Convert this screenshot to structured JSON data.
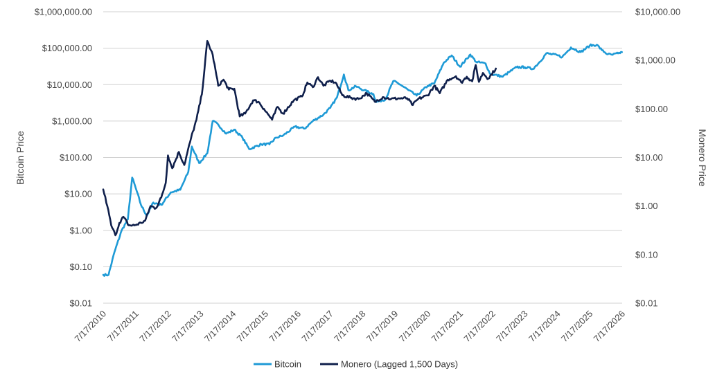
{
  "chart_data": {
    "type": "line",
    "title": "",
    "xlabel": "",
    "ylabel": "Bitcoin Price",
    "y2label": "Monero Price",
    "y_scale": "log",
    "y2_scale": "log",
    "ylim": [
      0.01,
      1000000
    ],
    "y2lim": [
      0.01,
      10000
    ],
    "x_ticks": [
      "7/17/2010",
      "7/17/2011",
      "7/17/2012",
      "7/17/2013",
      "7/17/2014",
      "7/17/2015",
      "7/17/2016",
      "7/17/2017",
      "7/17/2018",
      "7/17/2019",
      "7/17/2020",
      "7/17/2021",
      "7/17/2022",
      "7/17/2023",
      "7/17/2024",
      "7/17/2025",
      "7/17/2026"
    ],
    "y_ticks": [
      "$0.01",
      "$0.10",
      "$1.00",
      "$10.00",
      "$100.00",
      "$1,000.00",
      "$10,000.00",
      "$100,000.00",
      "$1,000,000.00"
    ],
    "y2_ticks": [
      "$0.01",
      "$0.10",
      "$1.00",
      "$10.00",
      "$100.00",
      "$1,000.00",
      "$10,000.00"
    ],
    "y_tick_values": [
      0.01,
      0.1,
      1,
      10,
      100,
      1000,
      10000,
      100000,
      1000000
    ],
    "y2_tick_values": [
      0.01,
      0.1,
      1,
      10,
      100,
      1000,
      10000
    ],
    "grid": true,
    "legend_position": "bottom-center",
    "series": [
      {
        "name": "Bitcoin",
        "axis": "left",
        "color": "#1e9ad6",
        "points": [
          [
            "2010-07-17",
            0.06
          ],
          [
            "2010-09-15",
            0.06
          ],
          [
            "2010-11-20",
            0.25
          ],
          [
            "2011-02-10",
            1.0
          ],
          [
            "2011-04-20",
            2.0
          ],
          [
            "2011-06-08",
            28
          ],
          [
            "2011-07-20",
            14
          ],
          [
            "2011-09-15",
            5.0
          ],
          [
            "2011-11-20",
            2.5
          ],
          [
            "2012-02-01",
            5.8
          ],
          [
            "2012-05-01",
            5.0
          ],
          [
            "2012-08-15",
            11
          ],
          [
            "2012-12-01",
            13
          ],
          [
            "2013-03-01",
            40
          ],
          [
            "2013-04-10",
            200
          ],
          [
            "2013-07-01",
            70
          ],
          [
            "2013-10-01",
            130
          ],
          [
            "2013-12-01",
            1000
          ],
          [
            "2014-02-01",
            800
          ],
          [
            "2014-05-01",
            450
          ],
          [
            "2014-08-01",
            580
          ],
          [
            "2014-11-01",
            350
          ],
          [
            "2015-01-15",
            170
          ],
          [
            "2015-06-01",
            230
          ],
          [
            "2015-09-01",
            230
          ],
          [
            "2015-11-15",
            350
          ],
          [
            "2016-02-01",
            400
          ],
          [
            "2016-06-15",
            700
          ],
          [
            "2016-10-01",
            620
          ],
          [
            "2017-01-01",
            1000
          ],
          [
            "2017-05-01",
            1500
          ],
          [
            "2017-07-17",
            2300
          ],
          [
            "2017-10-01",
            4500
          ],
          [
            "2017-12-17",
            19000
          ],
          [
            "2018-02-06",
            7000
          ],
          [
            "2018-05-01",
            9000
          ],
          [
            "2018-08-01",
            7000
          ],
          [
            "2018-11-15",
            5500
          ],
          [
            "2018-12-15",
            3300
          ],
          [
            "2019-04-01",
            4000
          ],
          [
            "2019-06-26",
            12500
          ],
          [
            "2019-09-15",
            10000
          ],
          [
            "2019-12-15",
            7000
          ],
          [
            "2020-03-15",
            5000
          ],
          [
            "2020-07-17",
            9200
          ],
          [
            "2020-10-01",
            10800
          ],
          [
            "2021-01-15",
            40000
          ],
          [
            "2021-04-14",
            63000
          ],
          [
            "2021-07-17",
            31000
          ],
          [
            "2021-11-10",
            67000
          ],
          [
            "2022-01-15",
            42000
          ],
          [
            "2022-05-01",
            38000
          ],
          [
            "2022-06-18",
            20000
          ],
          [
            "2022-11-10",
            16500
          ],
          [
            "2023-01-20",
            22000
          ],
          [
            "2023-04-15",
            30000
          ],
          [
            "2023-07-17",
            30000
          ],
          [
            "2023-10-15",
            27000
          ],
          [
            "2024-01-01",
            42000
          ],
          [
            "2024-03-14",
            72000
          ],
          [
            "2024-07-17",
            64000
          ],
          [
            "2024-09-10",
            57000
          ],
          [
            "2024-12-17",
            105000
          ],
          [
            "2025-04-07",
            78000
          ],
          [
            "2025-07-17",
            118000
          ],
          [
            "2025-10-05",
            124000
          ],
          [
            "2025-12-01",
            88000
          ],
          [
            "2026-02-05",
            68000
          ],
          [
            "2026-04-01",
            66000
          ],
          [
            "2026-06-01",
            72000
          ],
          [
            "2026-07-15",
            78000
          ]
        ]
      },
      {
        "name": "Monero (Lagged 1,500 Days)",
        "axis": "right",
        "color": "#0f1f4b",
        "points": [
          [
            "2010-07-17",
            2.2
          ],
          [
            "2010-09-01",
            1.0
          ],
          [
            "2010-10-15",
            0.4
          ],
          [
            "2010-12-01",
            0.25
          ],
          [
            "2011-01-15",
            0.45
          ],
          [
            "2011-03-01",
            0.6
          ],
          [
            "2011-05-01",
            0.4
          ],
          [
            "2011-07-01",
            0.4
          ],
          [
            "2011-09-15",
            0.45
          ],
          [
            "2011-11-01",
            0.5
          ],
          [
            "2012-01-01",
            1.0
          ],
          [
            "2012-03-01",
            0.9
          ],
          [
            "2012-05-01",
            1.5
          ],
          [
            "2012-06-20",
            3.0
          ],
          [
            "2012-07-15",
            11
          ],
          [
            "2012-09-01",
            6
          ],
          [
            "2012-11-15",
            13
          ],
          [
            "2013-01-15",
            7
          ],
          [
            "2013-04-01",
            25
          ],
          [
            "2013-06-01",
            60
          ],
          [
            "2013-08-01",
            200
          ],
          [
            "2013-10-01",
            2500
          ],
          [
            "2013-12-01",
            1300
          ],
          [
            "2014-02-01",
            300
          ],
          [
            "2014-04-01",
            400
          ],
          [
            "2014-06-01",
            250
          ],
          [
            "2014-08-01",
            260
          ],
          [
            "2014-10-01",
            70
          ],
          [
            "2014-12-01",
            80
          ],
          [
            "2015-03-01",
            150
          ],
          [
            "2015-05-01",
            140
          ],
          [
            "2015-07-01",
            100
          ],
          [
            "2015-10-01",
            60
          ],
          [
            "2015-12-01",
            110
          ],
          [
            "2016-02-01",
            80
          ],
          [
            "2016-06-01",
            150
          ],
          [
            "2016-09-01",
            180
          ],
          [
            "2016-11-01",
            350
          ],
          [
            "2017-01-01",
            280
          ],
          [
            "2017-03-01",
            450
          ],
          [
            "2017-05-01",
            300
          ],
          [
            "2017-07-17",
            380
          ],
          [
            "2017-09-15",
            350
          ],
          [
            "2017-12-01",
            190
          ],
          [
            "2018-03-01",
            170
          ],
          [
            "2018-06-01",
            160
          ],
          [
            "2018-09-01",
            210
          ],
          [
            "2018-12-01",
            140
          ],
          [
            "2019-03-01",
            175
          ],
          [
            "2019-06-01",
            160
          ],
          [
            "2019-09-01",
            165
          ],
          [
            "2019-12-01",
            165
          ],
          [
            "2020-02-01",
            120
          ],
          [
            "2020-04-01",
            160
          ],
          [
            "2020-07-17",
            190
          ],
          [
            "2020-10-01",
            300
          ],
          [
            "2020-12-01",
            210
          ],
          [
            "2021-03-01",
            400
          ],
          [
            "2021-06-01",
            470
          ],
          [
            "2021-08-01",
            350
          ],
          [
            "2021-10-01",
            460
          ],
          [
            "2021-12-01",
            370
          ],
          [
            "2022-01-10",
            800
          ],
          [
            "2022-02-15",
            360
          ],
          [
            "2022-04-01",
            550
          ],
          [
            "2022-06-01",
            420
          ],
          [
            "2022-08-25",
            680
          ]
        ]
      }
    ]
  }
}
